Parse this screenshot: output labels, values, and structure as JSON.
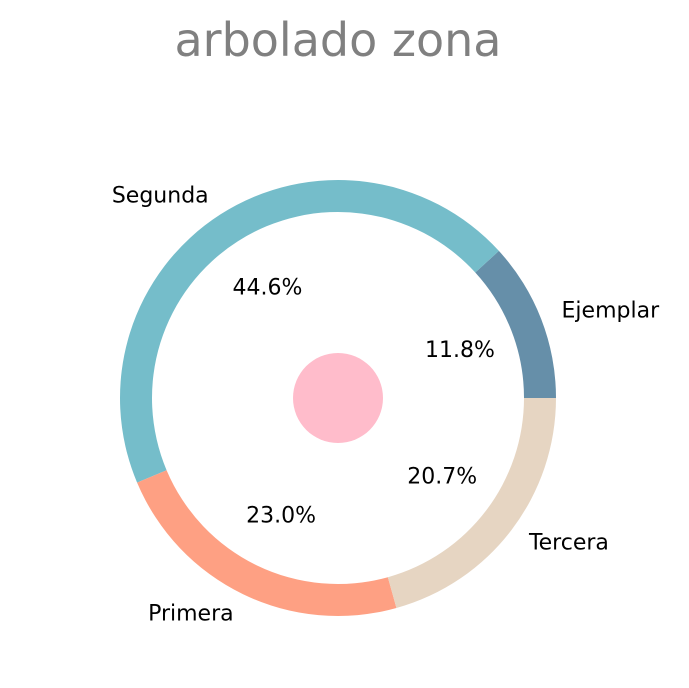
{
  "chart_data": {
    "type": "pie",
    "style": "donut",
    "title": "arbolado zona",
    "categories": [
      "Ejemplar",
      "Segunda",
      "Primera",
      "Tercera"
    ],
    "values": [
      11.8,
      44.6,
      23.0,
      20.7
    ],
    "value_labels": [
      "11.8%",
      "44.6%",
      "23.0%",
      "20.7%"
    ],
    "colors": [
      "#668fa9",
      "#75bdca",
      "#fea083",
      "#e6d5c2"
    ],
    "start_angle_deg": 0,
    "direction": "counterclockwise",
    "center_dot_color": "#ffbccb",
    "legend": "none"
  }
}
